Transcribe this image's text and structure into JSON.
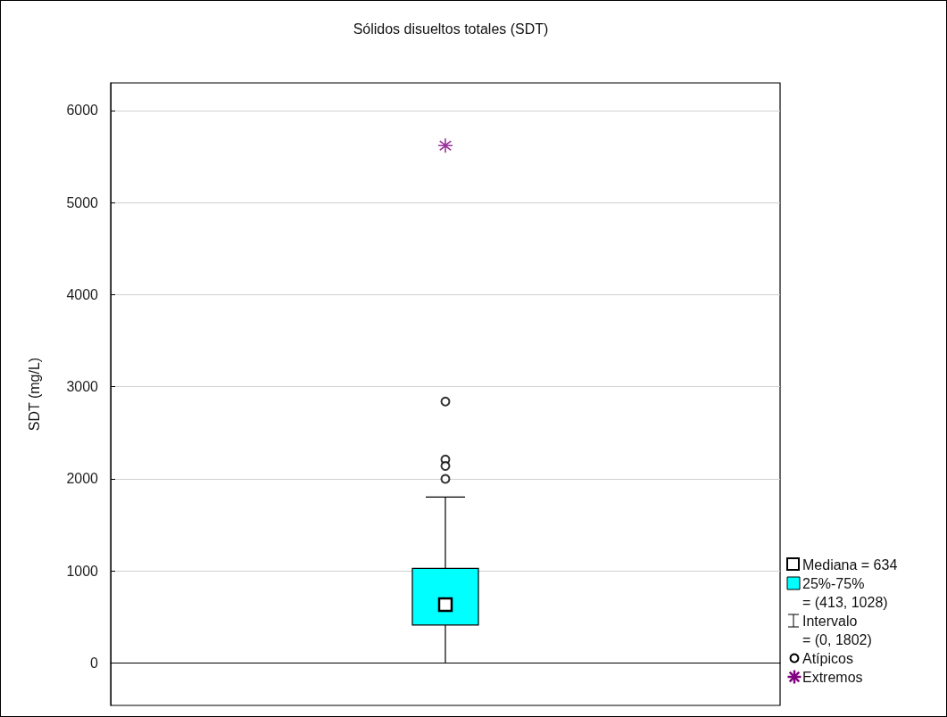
{
  "chart_data": {
    "type": "box",
    "title": "Sólidos disueltos totales (SDT)",
    "ylabel": "SDT (mg/L)",
    "categories": [
      null
    ],
    "ylim": [
      -460,
      6300
    ],
    "yticks": [
      0,
      1000,
      2000,
      3000,
      4000,
      5000,
      6000
    ],
    "grid": "y",
    "legend": "right",
    "annotations": [
      "Mediana = 634",
      "Intervalo\n= (0, 1802)"
    ],
    "series": [
      {
        "name": "25%-75%\n= (413, 1028)",
        "color": "#00ffff",
        "boxes": [
          {
            "low": 0,
            "q1": 413,
            "median": 634,
            "q3": 1028,
            "high": 1802
          }
        ]
      },
      {
        "type": "scatter",
        "name": "Atípicos",
        "color": "#000000",
        "marker": "circle",
        "x": [
          null,
          null,
          null,
          null
        ],
        "values": [
          2840,
          2210,
          2140,
          2000
        ]
      },
      {
        "type": "scatter",
        "name": "Extremos",
        "color": "#800080",
        "marker": "star",
        "x": [
          null
        ],
        "values": [
          5620
        ]
      }
    ]
  }
}
